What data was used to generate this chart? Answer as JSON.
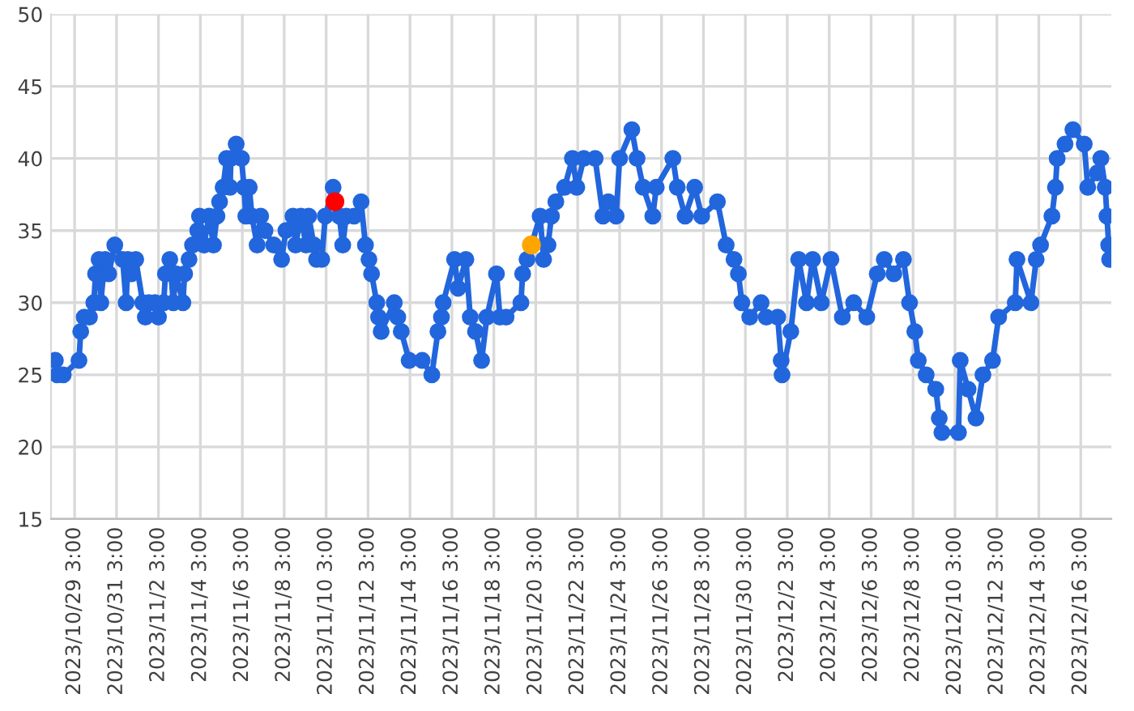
{
  "chart_data": {
    "type": "line",
    "marker": "circle",
    "line_style": "solid",
    "grid": true,
    "legend": false,
    "xlim": [
      "2023-10-28T00:00",
      "2023-12-17T14:00"
    ],
    "ylim": [
      15,
      50
    ],
    "yticks": [
      15,
      20,
      25,
      30,
      35,
      40,
      45,
      50
    ],
    "xticks": [
      {
        "value": "2023-10-29T03:00",
        "label": "2023/10/29 3:00"
      },
      {
        "value": "2023-10-31T03:00",
        "label": "2023/10/31 3:00"
      },
      {
        "value": "2023-11-02T03:00",
        "label": "2023/11/2 3:00"
      },
      {
        "value": "2023-11-04T03:00",
        "label": "2023/11/4 3:00"
      },
      {
        "value": "2023-11-06T03:00",
        "label": "2023/11/6 3:00"
      },
      {
        "value": "2023-11-08T03:00",
        "label": "2023/11/8 3:00"
      },
      {
        "value": "2023-11-10T03:00",
        "label": "2023/11/10 3:00"
      },
      {
        "value": "2023-11-12T03:00",
        "label": "2023/11/12 3:00"
      },
      {
        "value": "2023-11-14T03:00",
        "label": "2023/11/14 3:00"
      },
      {
        "value": "2023-11-16T03:00",
        "label": "2023/11/16 3:00"
      },
      {
        "value": "2023-11-18T03:00",
        "label": "2023/11/18 3:00"
      },
      {
        "value": "2023-11-20T03:00",
        "label": "2023/11/20 3:00"
      },
      {
        "value": "2023-11-22T03:00",
        "label": "2023/11/22 3:00"
      },
      {
        "value": "2023-11-24T03:00",
        "label": "2023/11/24 3:00"
      },
      {
        "value": "2023-11-26T03:00",
        "label": "2023/11/26 3:00"
      },
      {
        "value": "2023-11-28T03:00",
        "label": "2023/11/28 3:00"
      },
      {
        "value": "2023-11-30T03:00",
        "label": "2023/11/30 3:00"
      },
      {
        "value": "2023-12-02T03:00",
        "label": "2023/12/2 3:00"
      },
      {
        "value": "2023-12-04T03:00",
        "label": "2023/12/4 3:00"
      },
      {
        "value": "2023-12-06T03:00",
        "label": "2023/12/6 3:00"
      },
      {
        "value": "2023-12-08T03:00",
        "label": "2023/12/8 3:00"
      },
      {
        "value": "2023-12-10T03:00",
        "label": "2023/12/10 3:00"
      },
      {
        "value": "2023-12-12T03:00",
        "label": "2023/12/12 3:00"
      },
      {
        "value": "2023-12-14T03:00",
        "label": "2023/12/14 3:00"
      },
      {
        "value": "2023-12-16T03:00",
        "label": "2023/12/16 3:00"
      }
    ],
    "series": [
      {
        "color": "#2266dd",
        "x": [
          "2023-10-28T05:00",
          "2023-10-28T07:00",
          "2023-10-28T14:00",
          "2023-10-29T08:00",
          "2023-10-29T10:00",
          "2023-10-29T14:00",
          "2023-10-29T20:00",
          "2023-10-30T01:00",
          "2023-10-30T03:00",
          "2023-10-30T07:00",
          "2023-10-30T09:00",
          "2023-10-30T12:00",
          "2023-10-30T14:00",
          "2023-10-30T18:00",
          "2023-10-31T01:00",
          "2023-10-31T10:00",
          "2023-10-31T14:00",
          "2023-10-31T16:00",
          "2023-10-31T20:00",
          "2023-11-01T01:00",
          "2023-11-01T09:00",
          "2023-11-01T12:00",
          "2023-11-01T16:00",
          "2023-11-01T23:00",
          "2023-11-02T03:00",
          "2023-11-02T09:00",
          "2023-11-02T11:00",
          "2023-11-02T16:00",
          "2023-11-02T20:00",
          "2023-11-02T23:00",
          "2023-11-03T07:00",
          "2023-11-03T09:00",
          "2023-11-03T14:00",
          "2023-11-03T18:00",
          "2023-11-04T00:00",
          "2023-11-04T02:00",
          "2023-11-04T07:00",
          "2023-11-04T13:00",
          "2023-11-04T18:00",
          "2023-11-04T22:00",
          "2023-11-05T01:00",
          "2023-11-05T05:00",
          "2023-11-05T09:00",
          "2023-11-05T13:00",
          "2023-11-05T14:00",
          "2023-11-05T20:00",
          "2023-11-06T02:00",
          "2023-11-06T05:00",
          "2023-11-06T07:00",
          "2023-11-06T11:00",
          "2023-11-06T14:00",
          "2023-11-06T20:00",
          "2023-11-07T00:00",
          "2023-11-07T05:00",
          "2023-11-07T15:00",
          "2023-11-08T00:00",
          "2023-11-08T05:00",
          "2023-11-08T13:00",
          "2023-11-08T16:00",
          "2023-11-08T22:00",
          "2023-11-09T04:00",
          "2023-11-09T07:00",
          "2023-11-09T13:00",
          "2023-11-09T16:00",
          "2023-11-09T22:00",
          "2023-11-10T02:00",
          "2023-11-10T11:00",
          "2023-11-10T18:00",
          "2023-11-10T22:00",
          "2023-11-11T02:00",
          "2023-11-11T11:00",
          "2023-11-11T19:00",
          "2023-11-12T00:00",
          "2023-11-12T04:00",
          "2023-11-12T07:00",
          "2023-11-12T13:00",
          "2023-11-12T15:00",
          "2023-11-12T18:00",
          "2023-11-13T09:00",
          "2023-11-13T13:00",
          "2023-11-13T17:00",
          "2023-11-14T02:00",
          "2023-11-14T17:00",
          "2023-11-15T04:00",
          "2023-11-15T11:00",
          "2023-11-15T15:00",
          "2023-11-15T17:00",
          "2023-11-16T06:00",
          "2023-11-16T10:00",
          "2023-11-16T19:00",
          "2023-11-17T00:00",
          "2023-11-17T06:00",
          "2023-11-17T13:00",
          "2023-11-17T19:00",
          "2023-11-18T06:00",
          "2023-11-18T10:00",
          "2023-11-18T17:00",
          "2023-11-19T10:00",
          "2023-11-19T12:00",
          "2023-11-19T17:00",
          "2023-11-20T08:00",
          "2023-11-20T12:00",
          "2023-11-20T17:00",
          "2023-11-20T21:00",
          "2023-11-21T02:00",
          "2023-11-21T12:00",
          "2023-11-21T21:00",
          "2023-11-22T02:00",
          "2023-11-22T10:00",
          "2023-11-22T23:00",
          "2023-11-23T08:00",
          "2023-11-23T14:00",
          "2023-11-23T23:00",
          "2023-11-24T03:00",
          "2023-11-24T17:00",
          "2023-11-24T23:00",
          "2023-11-25T06:00",
          "2023-11-25T17:00",
          "2023-11-25T21:00",
          "2023-11-26T16:00",
          "2023-11-26T21:00",
          "2023-11-27T06:00",
          "2023-11-27T17:00",
          "2023-11-28T01:00",
          "2023-11-28T19:00",
          "2023-11-29T05:00",
          "2023-11-29T14:00",
          "2023-11-29T19:00",
          "2023-11-29T23:00",
          "2023-11-30T08:00",
          "2023-11-30T21:00",
          "2023-12-01T03:00",
          "2023-12-01T16:00",
          "2023-12-01T20:00",
          "2023-12-01T21:00",
          "2023-12-02T07:00",
          "2023-12-02T16:00",
          "2023-12-03T01:00",
          "2023-12-03T08:00",
          "2023-12-03T18:00",
          "2023-12-04T05:00",
          "2023-12-04T18:00",
          "2023-12-05T07:00",
          "2023-12-05T22:00",
          "2023-12-06T10:00",
          "2023-12-06T18:00",
          "2023-12-07T05:00",
          "2023-12-07T16:00",
          "2023-12-07T23:00",
          "2023-12-08T05:00",
          "2023-12-08T09:00",
          "2023-12-08T18:00",
          "2023-12-09T05:00",
          "2023-12-09T09:00",
          "2023-12-09T12:00",
          "2023-12-10T07:00",
          "2023-12-10T09:00",
          "2023-12-10T18:00",
          "2023-12-11T03:00",
          "2023-12-11T11:00",
          "2023-12-11T22:00",
          "2023-12-12T05:00",
          "2023-12-13T00:00",
          "2023-12-13T02:00",
          "2023-12-13T18:00",
          "2023-12-14T00:00",
          "2023-12-14T05:00",
          "2023-12-14T18:00",
          "2023-12-14T22:00",
          "2023-12-15T00:00",
          "2023-12-15T09:00",
          "2023-12-15T18:00",
          "2023-12-16T07:00",
          "2023-12-16T11:00",
          "2023-12-16T22:00",
          "2023-12-17T02:00",
          "2023-12-17T07:00",
          "2023-12-17T09:00",
          "2023-12-17T11:00",
          "2023-12-17T12:00"
        ],
        "values": [
          26,
          25,
          25,
          26,
          28,
          29,
          29,
          30,
          32,
          33,
          30,
          32,
          33,
          32,
          34,
          33,
          30,
          33,
          32,
          33,
          30,
          29,
          30,
          30,
          29,
          30,
          32,
          33,
          30,
          32,
          30,
          32,
          33,
          34,
          35,
          36,
          34,
          36,
          34,
          36,
          37,
          38,
          40,
          38,
          40,
          41,
          40,
          38,
          36,
          38,
          36,
          34,
          36,
          35,
          34,
          33,
          35,
          36,
          34,
          36,
          34,
          36,
          34,
          33,
          33,
          36,
          38,
          36,
          34,
          36,
          36,
          37,
          34,
          33,
          32,
          30,
          29,
          28,
          30,
          29,
          28,
          26,
          26,
          25,
          28,
          29,
          30,
          33,
          31,
          33,
          29,
          28,
          26,
          29,
          32,
          29,
          29,
          30,
          32,
          33,
          36,
          33,
          34,
          36,
          37,
          38,
          40,
          38,
          40,
          40,
          36,
          37,
          36,
          40,
          42,
          40,
          38,
          36,
          38,
          40,
          38,
          36,
          38,
          36,
          37,
          34,
          33,
          32,
          30,
          29,
          30,
          29,
          29,
          26,
          25,
          28,
          33,
          30,
          33,
          30,
          33,
          29,
          30,
          29,
          32,
          33,
          32,
          33,
          30,
          28,
          26,
          25,
          24,
          22,
          21,
          21,
          26,
          24,
          22,
          25,
          26,
          29,
          30,
          33,
          30,
          33,
          34,
          36,
          38,
          40,
          41,
          42,
          41,
          38,
          39,
          40,
          38,
          36,
          34,
          33
        ]
      },
      {
        "type": "scatter",
        "color": "#ff0000",
        "x": [
          "2023-11-10T13:00"
        ],
        "values": [
          37
        ]
      },
      {
        "type": "scatter",
        "color": "#ffa500",
        "x": [
          "2023-11-19T22:00"
        ],
        "values": [
          34
        ]
      }
    ]
  }
}
